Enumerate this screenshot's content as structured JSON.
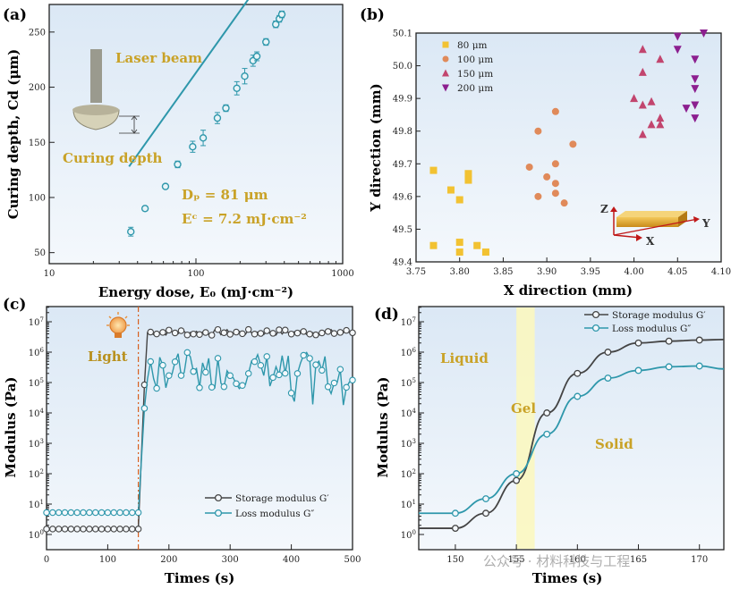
{
  "figure": {
    "panels": [
      "(a)",
      "(b)",
      "(c)",
      "(d)"
    ],
    "watermark": "公众号 · 材料科技与工程"
  },
  "colors": {
    "teal": "#2e97ab",
    "dark": "#444444",
    "yellow": "#f2c232",
    "orange": "#e08a5a",
    "pink": "#c2456e",
    "purple": "#8c1f8f",
    "gold": "#c9a227",
    "bg": "#e6eff8"
  },
  "chart_data": [
    {
      "panel": "(a)",
      "type": "scatter",
      "xscale": "log",
      "xlim": [
        10,
        1000
      ],
      "ylim": [
        40,
        275
      ],
      "xlabel": "Energy dose, E₀ (mJ·cm⁻²)",
      "ylabel": "Curing depth, Cd (μm)",
      "xticks": [
        "10",
        "100",
        "1000"
      ],
      "yticks": [
        "50",
        "100",
        "150",
        "200",
        "250"
      ],
      "series": [
        {
          "points": [
            {
              "x": 36,
              "y": 69,
              "err": 4
            },
            {
              "x": 45,
              "y": 90,
              "err": 2
            },
            {
              "x": 62,
              "y": 110,
              "err": 2
            },
            {
              "x": 75,
              "y": 130,
              "err": 3
            },
            {
              "x": 95,
              "y": 146,
              "err": 5
            },
            {
              "x": 112,
              "y": 154,
              "err": 7
            },
            {
              "x": 140,
              "y": 172,
              "err": 5
            },
            {
              "x": 160,
              "y": 181,
              "err": 3
            },
            {
              "x": 190,
              "y": 199,
              "err": 6
            },
            {
              "x": 215,
              "y": 210,
              "err": 7
            },
            {
              "x": 245,
              "y": 224,
              "err": 5
            },
            {
              "x": 260,
              "y": 228,
              "err": 4
            },
            {
              "x": 300,
              "y": 241,
              "err": 3
            },
            {
              "x": 350,
              "y": 257,
              "err": 3
            },
            {
              "x": 370,
              "y": 262,
              "err": 3
            },
            {
              "x": 385,
              "y": 266,
              "err": 3
            }
          ]
        }
      ],
      "fit": {
        "dp": 81,
        "ec": 7.2
      },
      "annotations": {
        "beam_label": "Laser beam",
        "depth_label": "Curing depth",
        "dp_text": "Dₚ = 81 μm",
        "ec_text": "Eᶜ = 7.2 mJ·cm⁻²"
      }
    },
    {
      "panel": "(b)",
      "type": "scatter",
      "xlim": [
        3.75,
        4.1
      ],
      "ylim": [
        49.4,
        50.1
      ],
      "xlabel": "X direction (mm)",
      "ylabel": "Y direction (mm)",
      "xticks": [
        "3.75",
        "3.80",
        "3.85",
        "3.90",
        "3.95",
        "4.00",
        "4.05",
        "4.10"
      ],
      "yticks": [
        "49.4",
        "49.5",
        "49.6",
        "49.7",
        "49.8",
        "49.9",
        "50.0",
        "50.1"
      ],
      "legend": "top-left",
      "series": [
        {
          "name": "80 μm",
          "marker": "square",
          "color": "#f2c232",
          "points": [
            [
              3.77,
              49.68
            ],
            [
              3.77,
              49.45
            ],
            [
              3.79,
              49.62
            ],
            [
              3.8,
              49.59
            ],
            [
              3.8,
              49.46
            ],
            [
              3.8,
              49.43
            ],
            [
              3.81,
              49.67
            ],
            [
              3.81,
              49.65
            ],
            [
              3.82,
              49.45
            ],
            [
              3.83,
              49.43
            ]
          ]
        },
        {
          "name": "100 μm",
          "marker": "circle",
          "color": "#e08a5a",
          "points": [
            [
              3.88,
              49.69
            ],
            [
              3.89,
              49.8
            ],
            [
              3.89,
              49.6
            ],
            [
              3.9,
              49.66
            ],
            [
              3.91,
              49.86
            ],
            [
              3.91,
              49.7
            ],
            [
              3.91,
              49.64
            ],
            [
              3.91,
              49.61
            ],
            [
              3.92,
              49.58
            ],
            [
              3.93,
              49.76
            ]
          ]
        },
        {
          "name": "150 μm",
          "marker": "triangle-up",
          "color": "#c2456e",
          "points": [
            [
              4.0,
              49.9
            ],
            [
              4.01,
              50.05
            ],
            [
              4.01,
              49.98
            ],
            [
              4.01,
              49.88
            ],
            [
              4.01,
              49.79
            ],
            [
              4.02,
              49.89
            ],
            [
              4.02,
              49.82
            ],
            [
              4.03,
              50.02
            ],
            [
              4.03,
              49.84
            ],
            [
              4.03,
              49.82
            ]
          ]
        },
        {
          "name": "200 μm",
          "marker": "triangle-down",
          "color": "#8c1f8f",
          "points": [
            [
              4.05,
              50.09
            ],
            [
              4.05,
              50.05
            ],
            [
              4.06,
              49.87
            ],
            [
              4.07,
              50.02
            ],
            [
              4.07,
              49.96
            ],
            [
              4.07,
              49.93
            ],
            [
              4.07,
              49.88
            ],
            [
              4.07,
              49.84
            ],
            [
              4.08,
              50.1
            ]
          ]
        }
      ],
      "annotations": {
        "z_axis": "Z",
        "x_axis": "X",
        "y_axis": "Y"
      }
    },
    {
      "panel": "(c)",
      "type": "line",
      "yscale": "log",
      "xlim": [
        0,
        500
      ],
      "ylim_exp": [
        -0.5,
        7.5
      ],
      "xlabel": "Times (s)",
      "ylabel": "Modulus (Pa)",
      "xticks": [
        "0",
        "100",
        "200",
        "300",
        "400",
        "500"
      ],
      "yticks_exp": [
        0,
        1,
        2,
        3,
        4,
        5,
        6,
        7
      ],
      "light_on_x": 150,
      "annotations": {
        "light_label": "Light"
      },
      "legend": "bottom-right",
      "series": [
        {
          "name": "Storage modulus G′",
          "color": "#444444",
          "baseline_log": 0.18,
          "plateau_log": 6.65,
          "jitter": 0.1
        },
        {
          "name": "Loss modulus G″",
          "color": "#2e97ab",
          "baseline_log": 0.72,
          "plateau_log": 5.4,
          "jitter": 0.6
        }
      ]
    },
    {
      "panel": "(d)",
      "type": "line",
      "yscale": "log",
      "xlim": [
        147,
        172
      ],
      "ylim_exp": [
        -0.5,
        7.5
      ],
      "xlabel": "Times (s)",
      "ylabel": "Modulus (Pa)",
      "xticks": [
        "150",
        "155",
        "160",
        "165",
        "170"
      ],
      "yticks_exp": [
        0,
        1,
        2,
        3,
        4,
        5,
        6,
        7
      ],
      "gel_band": [
        155,
        156.5
      ],
      "annotations": {
        "liquid": "Liquid",
        "gel": "Gel",
        "solid": "Solid"
      },
      "legend": "top-left",
      "series": [
        {
          "name": "Storage modulus G′",
          "color": "#444444",
          "points": [
            [
              147,
              1.6
            ],
            [
              150,
              1.6
            ],
            [
              152.5,
              5
            ],
            [
              155,
              60
            ],
            [
              157.5,
              10000
            ],
            [
              160,
              200000
            ],
            [
              162.5,
              1000000
            ],
            [
              165,
              2000000
            ],
            [
              167.5,
              2300000
            ],
            [
              170,
              2500000
            ],
            [
              172,
              2600000
            ]
          ]
        },
        {
          "name": "Loss modulus G″",
          "color": "#2e97ab",
          "points": [
            [
              147,
              5
            ],
            [
              150,
              5
            ],
            [
              152.5,
              15
            ],
            [
              155,
              100
            ],
            [
              157.5,
              2000
            ],
            [
              160,
              35000
            ],
            [
              162.5,
              140000
            ],
            [
              165,
              250000
            ],
            [
              167.5,
              330000
            ],
            [
              170,
              350000
            ],
            [
              172,
              280000
            ]
          ]
        }
      ]
    }
  ]
}
